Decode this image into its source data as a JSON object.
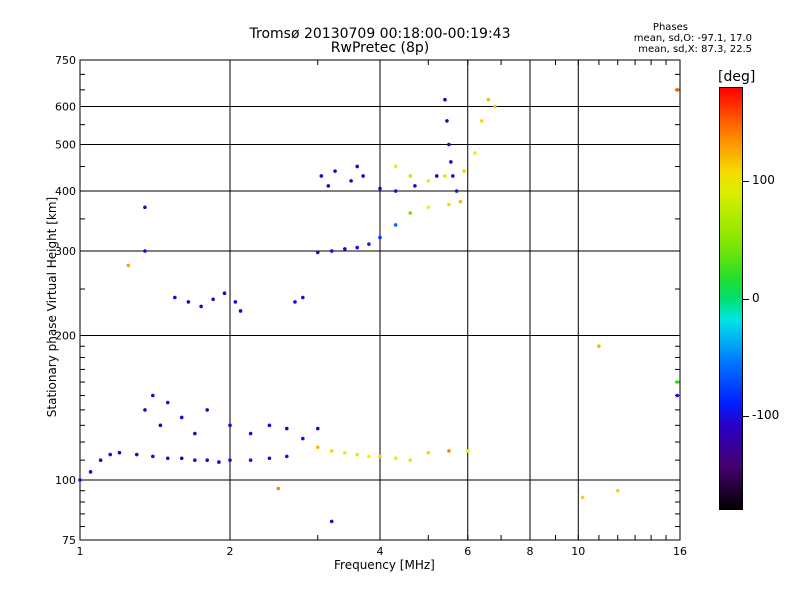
{
  "title": "Tromsø 20130709 00:18:00-00:19:43",
  "subtitle": "RwPretec (8p)",
  "stats": {
    "heading": "Phases",
    "line_o": "mean, sd,O: -97.1, 17.0",
    "line_x": "mean, sd,X:  87.3, 22.5"
  },
  "colorbar": {
    "unit": "[deg]",
    "ticks": [
      {
        "value": 100,
        "label": "100"
      },
      {
        "value": 0,
        "label": "0"
      },
      {
        "value": -100,
        "label": "-100"
      }
    ],
    "range": [
      -180,
      180
    ]
  },
  "chart_data": {
    "type": "scatter",
    "title": "Tromsø 20130709 00:18:00-00:19:43",
    "subtitle": "RwPretec (8p)",
    "xlabel": "Frequency [MHz]",
    "ylabel": "Stationary phase Virtual Height [km]",
    "x_scale": "log",
    "y_scale": "log",
    "xlim": [
      1,
      16
    ],
    "ylim": [
      75,
      750
    ],
    "x_ticks": [
      1,
      2,
      4,
      6,
      8,
      10,
      16
    ],
    "x_tick_labels": [
      "1",
      "2",
      "4",
      "6",
      "8",
      "10",
      "16"
    ],
    "y_ticks": [
      75,
      100,
      200,
      300,
      400,
      500,
      600,
      750
    ],
    "y_tick_labels": [
      "75",
      "100",
      "200",
      "300",
      "400",
      "500",
      "600",
      "750"
    ],
    "grid": true,
    "series": [
      {
        "values": [
          [
            1.0,
            100,
            -100
          ],
          [
            1.05,
            104,
            -105
          ],
          [
            1.1,
            110,
            -110
          ],
          [
            1.15,
            113,
            -112
          ],
          [
            1.2,
            114,
            -115
          ],
          [
            1.3,
            113,
            -110
          ],
          [
            1.4,
            112,
            -108
          ],
          [
            1.5,
            111,
            -112
          ],
          [
            1.6,
            111,
            -110
          ],
          [
            1.7,
            110,
            -105
          ],
          [
            1.8,
            110,
            -108
          ],
          [
            1.9,
            109,
            -110
          ],
          [
            2.0,
            110,
            -100
          ],
          [
            2.2,
            110,
            -95
          ],
          [
            2.4,
            111,
            -100
          ],
          [
            2.6,
            112,
            -98
          ]
        ]
      },
      {
        "values": [
          [
            1.35,
            140,
            -110
          ],
          [
            1.4,
            150,
            -105
          ],
          [
            1.45,
            130,
            -115
          ],
          [
            1.5,
            145,
            -100
          ],
          [
            1.6,
            135,
            -110
          ],
          [
            1.7,
            125,
            -108
          ],
          [
            1.8,
            140,
            -112
          ],
          [
            2.0,
            130,
            -105
          ],
          [
            2.2,
            125,
            -102
          ],
          [
            2.4,
            130,
            -108
          ],
          [
            2.6,
            128,
            -110
          ],
          [
            2.8,
            122,
            -100
          ],
          [
            3.0,
            128,
            -105
          ]
        ]
      },
      {
        "values": [
          [
            1.55,
            240,
            -110
          ],
          [
            1.65,
            235,
            -108
          ],
          [
            1.75,
            230,
            -112
          ],
          [
            1.85,
            238,
            -105
          ],
          [
            1.95,
            245,
            -110
          ],
          [
            2.05,
            235,
            -108
          ],
          [
            2.1,
            225,
            -112
          ],
          [
            2.7,
            235,
            -100
          ],
          [
            2.8,
            240,
            -105
          ]
        ]
      },
      {
        "values": [
          [
            3.0,
            298,
            -100
          ],
          [
            3.2,
            300,
            -105
          ],
          [
            3.4,
            303,
            -110
          ],
          [
            3.6,
            305,
            -100
          ],
          [
            3.8,
            310,
            -95
          ],
          [
            4.0,
            320,
            -80
          ],
          [
            4.3,
            340,
            -60
          ],
          [
            4.6,
            360,
            40
          ],
          [
            5.0,
            370,
            100
          ],
          [
            5.5,
            375,
            110
          ],
          [
            5.8,
            380,
            120
          ]
        ]
      },
      {
        "values": [
          [
            3.05,
            430,
            -110
          ],
          [
            3.15,
            410,
            -115
          ],
          [
            3.25,
            440,
            -120
          ],
          [
            3.5,
            420,
            -112
          ],
          [
            3.6,
            450,
            -108
          ],
          [
            3.7,
            430,
            -110
          ],
          [
            4.0,
            405,
            -105
          ],
          [
            4.3,
            400,
            -100
          ],
          [
            4.7,
            410,
            -110
          ],
          [
            5.2,
            430,
            -105
          ]
        ]
      },
      {
        "values": [
          [
            5.4,
            620,
            -120
          ],
          [
            5.45,
            560,
            -115
          ],
          [
            5.5,
            500,
            -110
          ],
          [
            5.55,
            460,
            -105
          ],
          [
            5.6,
            430,
            -100
          ],
          [
            5.7,
            400,
            -95
          ]
        ]
      },
      {
        "values": [
          [
            4.3,
            450,
            100
          ],
          [
            4.6,
            430,
            110
          ],
          [
            5.0,
            420,
            95
          ],
          [
            5.4,
            430,
            105
          ],
          [
            5.9,
            440,
            110
          ],
          [
            6.2,
            480,
            100
          ],
          [
            6.4,
            560,
            110
          ],
          [
            6.6,
            620,
            120
          ],
          [
            6.8,
            600,
            115
          ]
        ]
      },
      {
        "values": [
          [
            3.0,
            117,
            120
          ],
          [
            3.2,
            115,
            110
          ],
          [
            3.4,
            114,
            100
          ],
          [
            3.6,
            113,
            90
          ],
          [
            3.8,
            112,
            100
          ],
          [
            4.0,
            112,
            110
          ],
          [
            4.3,
            111,
            100
          ],
          [
            4.6,
            110,
            105
          ],
          [
            5.0,
            114,
            110
          ],
          [
            5.5,
            115,
            140
          ],
          [
            6.0,
            115,
            100
          ]
        ]
      },
      {
        "values": [
          [
            1.35,
            300,
            -100
          ],
          [
            1.35,
            370,
            -110
          ],
          [
            1.25,
            280,
            130
          ],
          [
            2.5,
            96,
            140
          ],
          [
            3.2,
            82,
            -110
          ],
          [
            10.2,
            92,
            110
          ],
          [
            11.0,
            190,
            120
          ],
          [
            12.0,
            95,
            110
          ],
          [
            15.8,
            150,
            -100
          ],
          [
            15.8,
            160,
            20
          ],
          [
            15.8,
            650,
            150
          ]
        ]
      }
    ]
  }
}
